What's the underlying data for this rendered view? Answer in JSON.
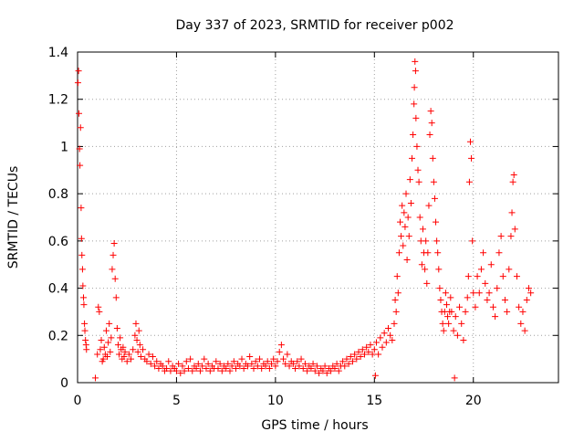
{
  "chart_data": {
    "type": "scatter",
    "title": "Day 337 of 2023, SRMTID for receiver p002",
    "xlabel": "GPS time / hours",
    "ylabel": "SRMTID / TECUs",
    "xlim": [
      0,
      24.3
    ],
    "ylim": [
      0,
      1.4
    ],
    "xticks": [
      0,
      5,
      10,
      15,
      20
    ],
    "yticks": [
      0,
      0.2,
      0.4,
      0.6,
      0.8,
      1,
      1.2,
      1.4
    ],
    "xtick_labels": [
      "0",
      "5",
      "10",
      "15",
      "20"
    ],
    "ytick_labels": [
      "0",
      "0.2",
      "0.4",
      "0.6",
      "0.8",
      "1",
      "1.2",
      "1.4"
    ],
    "grid": true,
    "marker": "+",
    "colors": {
      "series": "#ff0000",
      "grid": "#a0a0a0",
      "axis": "#000000"
    },
    "series": [
      {
        "name": "SRMTID",
        "points": [
          [
            0.02,
            1.27
          ],
          [
            0.05,
            1.32
          ],
          [
            0.07,
            1.14
          ],
          [
            0.1,
            0.99
          ],
          [
            0.12,
            0.92
          ],
          [
            0.15,
            1.08
          ],
          [
            0.18,
            0.74
          ],
          [
            0.2,
            0.61
          ],
          [
            0.22,
            0.54
          ],
          [
            0.25,
            0.48
          ],
          [
            0.27,
            0.41
          ],
          [
            0.3,
            0.36
          ],
          [
            0.32,
            0.33
          ],
          [
            0.35,
            0.25
          ],
          [
            0.37,
            0.22
          ],
          [
            0.4,
            0.18
          ],
          [
            0.43,
            0.16
          ],
          [
            0.45,
            0.14
          ],
          [
            0.9,
            0.02
          ],
          [
            1.0,
            0.12
          ],
          [
            1.05,
            0.32
          ],
          [
            1.1,
            0.3
          ],
          [
            1.15,
            0.14
          ],
          [
            1.2,
            0.18
          ],
          [
            1.25,
            0.09
          ],
          [
            1.3,
            0.1
          ],
          [
            1.35,
            0.15
          ],
          [
            1.4,
            0.12
          ],
          [
            1.45,
            0.22
          ],
          [
            1.5,
            0.11
          ],
          [
            1.55,
            0.17
          ],
          [
            1.6,
            0.25
          ],
          [
            1.65,
            0.13
          ],
          [
            1.7,
            0.19
          ],
          [
            1.75,
            0.48
          ],
          [
            1.8,
            0.54
          ],
          [
            1.85,
            0.59
          ],
          [
            1.9,
            0.44
          ],
          [
            1.95,
            0.36
          ],
          [
            2.0,
            0.23
          ],
          [
            2.05,
            0.16
          ],
          [
            2.1,
            0.12
          ],
          [
            2.15,
            0.19
          ],
          [
            2.2,
            0.14
          ],
          [
            2.25,
            0.1
          ],
          [
            2.3,
            0.15
          ],
          [
            2.35,
            0.11
          ],
          [
            2.4,
            0.13
          ],
          [
            2.5,
            0.09
          ],
          [
            2.6,
            0.12
          ],
          [
            2.7,
            0.1
          ],
          [
            2.8,
            0.14
          ],
          [
            2.9,
            0.2
          ],
          [
            2.95,
            0.25
          ],
          [
            3.0,
            0.18
          ],
          [
            3.05,
            0.13
          ],
          [
            3.1,
            0.22
          ],
          [
            3.15,
            0.16
          ],
          [
            3.2,
            0.11
          ],
          [
            3.3,
            0.14
          ],
          [
            3.4,
            0.1
          ],
          [
            3.5,
            0.09
          ],
          [
            3.6,
            0.12
          ],
          [
            3.7,
            0.08
          ],
          [
            3.8,
            0.11
          ],
          [
            3.9,
            0.07
          ],
          [
            4.0,
            0.09
          ],
          [
            4.1,
            0.06
          ],
          [
            4.2,
            0.08
          ],
          [
            4.3,
            0.07
          ],
          [
            4.4,
            0.05
          ],
          [
            4.5,
            0.06
          ],
          [
            4.6,
            0.09
          ],
          [
            4.7,
            0.05
          ],
          [
            4.8,
            0.07
          ],
          [
            4.9,
            0.06
          ],
          [
            5.0,
            0.05
          ],
          [
            5.1,
            0.08
          ],
          [
            5.2,
            0.04
          ],
          [
            5.3,
            0.07
          ],
          [
            5.4,
            0.05
          ],
          [
            5.5,
            0.09
          ],
          [
            5.6,
            0.06
          ],
          [
            5.7,
            0.1
          ],
          [
            5.8,
            0.05
          ],
          [
            5.9,
            0.07
          ],
          [
            6.0,
            0.06
          ],
          [
            6.1,
            0.08
          ],
          [
            6.2,
            0.05
          ],
          [
            6.3,
            0.07
          ],
          [
            6.4,
            0.1
          ],
          [
            6.5,
            0.06
          ],
          [
            6.6,
            0.08
          ],
          [
            6.7,
            0.05
          ],
          [
            6.8,
            0.07
          ],
          [
            6.9,
            0.06
          ],
          [
            7.0,
            0.09
          ],
          [
            7.1,
            0.06
          ],
          [
            7.2,
            0.08
          ],
          [
            7.3,
            0.05
          ],
          [
            7.4,
            0.07
          ],
          [
            7.5,
            0.06
          ],
          [
            7.6,
            0.08
          ],
          [
            7.7,
            0.05
          ],
          [
            7.8,
            0.07
          ],
          [
            7.9,
            0.09
          ],
          [
            8.0,
            0.06
          ],
          [
            8.1,
            0.08
          ],
          [
            8.2,
            0.07
          ],
          [
            8.3,
            0.1
          ],
          [
            8.4,
            0.06
          ],
          [
            8.5,
            0.08
          ],
          [
            8.6,
            0.07
          ],
          [
            8.7,
            0.11
          ],
          [
            8.8,
            0.08
          ],
          [
            8.9,
            0.06
          ],
          [
            9.0,
            0.09
          ],
          [
            9.1,
            0.07
          ],
          [
            9.2,
            0.1
          ],
          [
            9.3,
            0.06
          ],
          [
            9.4,
            0.08
          ],
          [
            9.5,
            0.07
          ],
          [
            9.6,
            0.09
          ],
          [
            9.7,
            0.06
          ],
          [
            9.8,
            0.08
          ],
          [
            9.9,
            0.1
          ],
          [
            10.0,
            0.07
          ],
          [
            10.1,
            0.09
          ],
          [
            10.2,
            0.13
          ],
          [
            10.3,
            0.16
          ],
          [
            10.4,
            0.1
          ],
          [
            10.5,
            0.08
          ],
          [
            10.6,
            0.12
          ],
          [
            10.7,
            0.07
          ],
          [
            10.8,
            0.09
          ],
          [
            10.9,
            0.08
          ],
          [
            11.0,
            0.06
          ],
          [
            11.1,
            0.09
          ],
          [
            11.2,
            0.07
          ],
          [
            11.3,
            0.1
          ],
          [
            11.4,
            0.06
          ],
          [
            11.5,
            0.08
          ],
          [
            11.6,
            0.05
          ],
          [
            11.7,
            0.07
          ],
          [
            11.8,
            0.06
          ],
          [
            11.9,
            0.08
          ],
          [
            12.0,
            0.05
          ],
          [
            12.1,
            0.07
          ],
          [
            12.2,
            0.04
          ],
          [
            12.3,
            0.06
          ],
          [
            12.4,
            0.05
          ],
          [
            12.5,
            0.07
          ],
          [
            12.6,
            0.04
          ],
          [
            12.7,
            0.06
          ],
          [
            12.8,
            0.05
          ],
          [
            12.9,
            0.07
          ],
          [
            13.0,
            0.06
          ],
          [
            13.1,
            0.08
          ],
          [
            13.2,
            0.05
          ],
          [
            13.3,
            0.07
          ],
          [
            13.4,
            0.09
          ],
          [
            13.5,
            0.07
          ],
          [
            13.6,
            0.1
          ],
          [
            13.7,
            0.08
          ],
          [
            13.8,
            0.11
          ],
          [
            13.9,
            0.09
          ],
          [
            14.0,
            0.12
          ],
          [
            14.1,
            0.1
          ],
          [
            14.2,
            0.13
          ],
          [
            14.3,
            0.11
          ],
          [
            14.4,
            0.14
          ],
          [
            14.5,
            0.12
          ],
          [
            14.6,
            0.15
          ],
          [
            14.7,
            0.13
          ],
          [
            14.8,
            0.16
          ],
          [
            14.9,
            0.12
          ],
          [
            15.0,
            0.14
          ],
          [
            15.05,
            0.03
          ],
          [
            15.1,
            0.17
          ],
          [
            15.2,
            0.12
          ],
          [
            15.3,
            0.19
          ],
          [
            15.4,
            0.15
          ],
          [
            15.5,
            0.21
          ],
          [
            15.6,
            0.17
          ],
          [
            15.7,
            0.23
          ],
          [
            15.8,
            0.2
          ],
          [
            15.9,
            0.18
          ],
          [
            16.0,
            0.25
          ],
          [
            16.05,
            0.35
          ],
          [
            16.1,
            0.3
          ],
          [
            16.15,
            0.45
          ],
          [
            16.2,
            0.38
          ],
          [
            16.25,
            0.55
          ],
          [
            16.3,
            0.68
          ],
          [
            16.35,
            0.62
          ],
          [
            16.4,
            0.75
          ],
          [
            16.45,
            0.58
          ],
          [
            16.5,
            0.72
          ],
          [
            16.55,
            0.66
          ],
          [
            16.6,
            0.8
          ],
          [
            16.65,
            0.52
          ],
          [
            16.7,
            0.7
          ],
          [
            16.75,
            0.62
          ],
          [
            16.8,
            0.86
          ],
          [
            16.85,
            0.76
          ],
          [
            16.9,
            0.95
          ],
          [
            16.95,
            1.05
          ],
          [
            17.0,
            1.18
          ],
          [
            17.02,
            1.25
          ],
          [
            17.05,
            1.36
          ],
          [
            17.08,
            1.32
          ],
          [
            17.1,
            1.12
          ],
          [
            17.15,
            1.0
          ],
          [
            17.2,
            0.9
          ],
          [
            17.25,
            0.85
          ],
          [
            17.3,
            0.7
          ],
          [
            17.35,
            0.6
          ],
          [
            17.4,
            0.5
          ],
          [
            17.45,
            0.65
          ],
          [
            17.5,
            0.55
          ],
          [
            17.55,
            0.48
          ],
          [
            17.6,
            0.6
          ],
          [
            17.65,
            0.42
          ],
          [
            17.7,
            0.55
          ],
          [
            17.75,
            0.75
          ],
          [
            17.8,
            1.05
          ],
          [
            17.85,
            1.15
          ],
          [
            17.9,
            1.1
          ],
          [
            17.95,
            0.95
          ],
          [
            18.0,
            0.85
          ],
          [
            18.05,
            0.78
          ],
          [
            18.1,
            0.68
          ],
          [
            18.15,
            0.6
          ],
          [
            18.2,
            0.55
          ],
          [
            18.25,
            0.48
          ],
          [
            18.3,
            0.4
          ],
          [
            18.35,
            0.35
          ],
          [
            18.4,
            0.3
          ],
          [
            18.45,
            0.25
          ],
          [
            18.5,
            0.22
          ],
          [
            18.55,
            0.3
          ],
          [
            18.6,
            0.38
          ],
          [
            18.65,
            0.33
          ],
          [
            18.7,
            0.28
          ],
          [
            18.75,
            0.25
          ],
          [
            18.8,
            0.3
          ],
          [
            18.85,
            0.36
          ],
          [
            18.9,
            0.3
          ],
          [
            19.0,
            0.22
          ],
          [
            19.05,
            0.02
          ],
          [
            19.1,
            0.28
          ],
          [
            19.2,
            0.2
          ],
          [
            19.3,
            0.32
          ],
          [
            19.4,
            0.25
          ],
          [
            19.5,
            0.18
          ],
          [
            19.6,
            0.3
          ],
          [
            19.7,
            0.36
          ],
          [
            19.75,
            0.45
          ],
          [
            19.8,
            0.85
          ],
          [
            19.85,
            1.02
          ],
          [
            19.9,
            0.95
          ],
          [
            19.95,
            0.6
          ],
          [
            20.0,
            0.38
          ],
          [
            20.1,
            0.32
          ],
          [
            20.2,
            0.45
          ],
          [
            20.3,
            0.38
          ],
          [
            20.4,
            0.48
          ],
          [
            20.5,
            0.55
          ],
          [
            20.6,
            0.42
          ],
          [
            20.7,
            0.35
          ],
          [
            20.8,
            0.38
          ],
          [
            20.9,
            0.5
          ],
          [
            21.0,
            0.32
          ],
          [
            21.1,
            0.28
          ],
          [
            21.2,
            0.4
          ],
          [
            21.3,
            0.55
          ],
          [
            21.4,
            0.62
          ],
          [
            21.5,
            0.45
          ],
          [
            21.6,
            0.35
          ],
          [
            21.7,
            0.3
          ],
          [
            21.8,
            0.48
          ],
          [
            21.9,
            0.62
          ],
          [
            21.95,
            0.72
          ],
          [
            22.0,
            0.85
          ],
          [
            22.05,
            0.88
          ],
          [
            22.1,
            0.65
          ],
          [
            22.2,
            0.45
          ],
          [
            22.3,
            0.32
          ],
          [
            22.4,
            0.25
          ],
          [
            22.5,
            0.3
          ],
          [
            22.6,
            0.22
          ],
          [
            22.7,
            0.35
          ],
          [
            22.8,
            0.4
          ],
          [
            22.9,
            0.38
          ]
        ]
      }
    ]
  }
}
